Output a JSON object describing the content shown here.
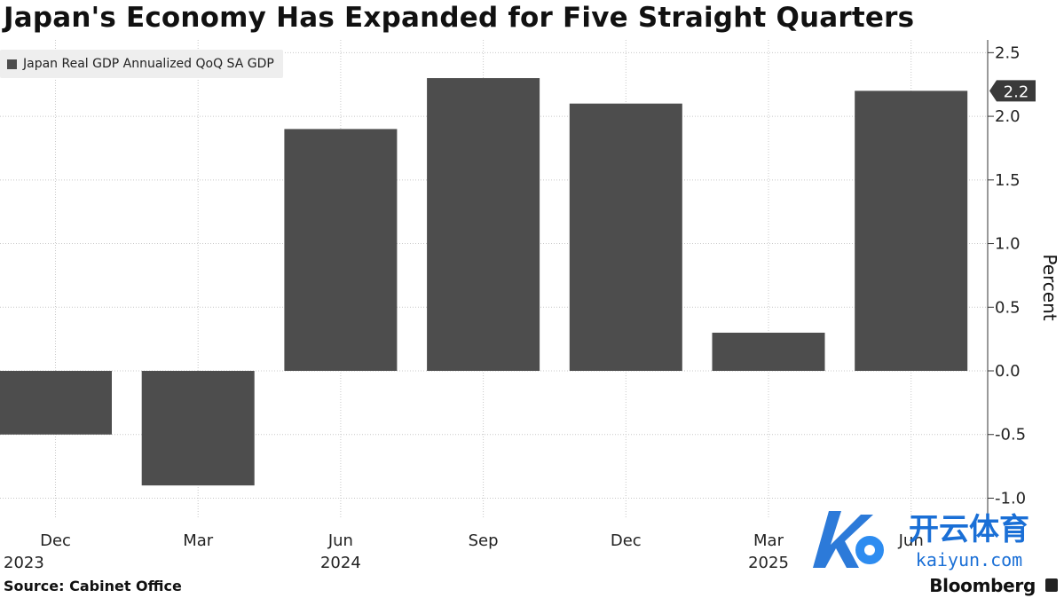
{
  "title": "Japan's Economy Has Expanded for Five Straight Quarters",
  "legend": {
    "label": "Japan Real GDP Annualized QoQ SA GDP",
    "color": "#4d4d4d"
  },
  "source": "Source:  Cabinet Office",
  "brand": "Bloomberg",
  "watermark": {
    "name": "开云体育",
    "site": "kaiyun.com",
    "color": "#1a6fd6"
  },
  "chart_data": {
    "type": "bar",
    "categories": [
      "Dec 2023",
      "Mar 2024",
      "Jun 2024",
      "Sep 2024",
      "Dec 2024",
      "Mar 2025",
      "Jun 2025"
    ],
    "x_tick_labels": [
      {
        "month": "Dec",
        "year": "2023"
      },
      {
        "month": "Mar",
        "year": ""
      },
      {
        "month": "Jun",
        "year": "2024"
      },
      {
        "month": "Sep",
        "year": ""
      },
      {
        "month": "Dec",
        "year": ""
      },
      {
        "month": "Mar",
        "year": "2025"
      },
      {
        "month": "Jun",
        "year": ""
      }
    ],
    "series": [
      {
        "name": "Japan Real GDP Annualized QoQ SA GDP",
        "values": [
          -0.5,
          -0.9,
          1.9,
          2.3,
          2.1,
          0.3,
          2.2
        ],
        "color": "#4d4d4d"
      }
    ],
    "ylim": [
      -1.15,
      2.6
    ],
    "yticks": [
      -1.0,
      -0.5,
      0.0,
      0.5,
      1.0,
      1.5,
      2.0,
      2.5
    ],
    "ylabel": "Percent",
    "xlabel": "",
    "last_value_label": "2.2",
    "grid": true,
    "legend_position": "top-left"
  }
}
